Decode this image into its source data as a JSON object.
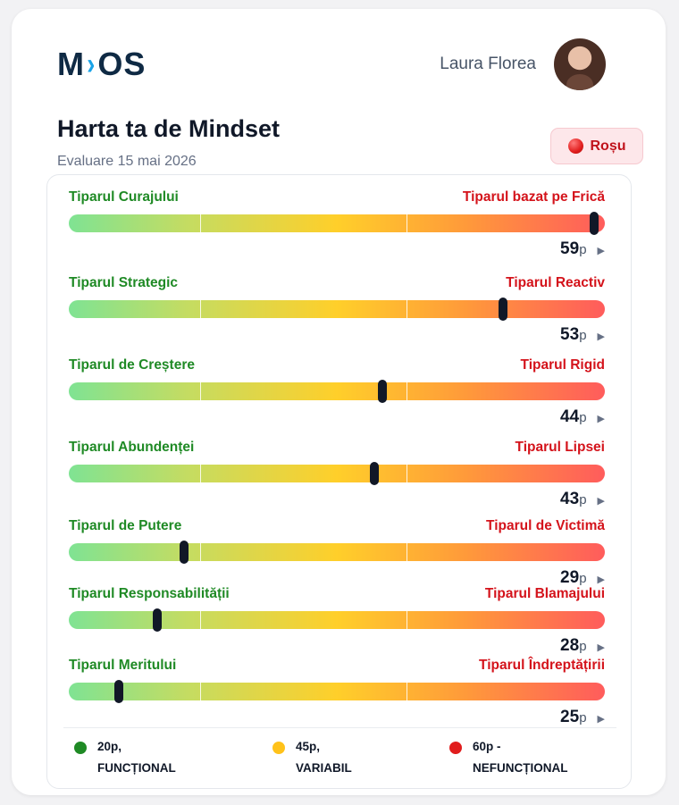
{
  "brand": {
    "name_left": "M",
    "name_mark": "›",
    "name_right": "OS",
    "accent": "#1aa3e8",
    "color": "#0f2a44"
  },
  "user": {
    "name": "Laura Florea",
    "avatar": "user-photo"
  },
  "header": {
    "title": "Harta ta de Mindset",
    "date": "Evaluare 15 mai 2026"
  },
  "status": {
    "label": "Roșu",
    "color": "#c0121b"
  },
  "unit": "p",
  "patterns": [
    {
      "left": "Tiparul Curajului",
      "right": "Tiparul bazat pe Frică",
      "score": "59",
      "fraction": 0.98
    },
    {
      "left": "Tiparul Strategic",
      "right": "Tiparul Reactiv",
      "score": "53",
      "fraction": 0.81
    },
    {
      "left": "Tiparul de Creștere",
      "right": "Tiparul Rigid",
      "score": "44",
      "fraction": 0.585
    },
    {
      "left": "Tiparul Abundenței",
      "right": "Tiparul Lipsei",
      "score": "43",
      "fraction": 0.57
    },
    {
      "left": "Tiparul de Putere",
      "right": "Tiparul de Victimă",
      "score": "29",
      "fraction": 0.215
    },
    {
      "left": "Tiparul Responsabilității",
      "right": "Tiparul Blamajului",
      "score": "28",
      "fraction": 0.165
    },
    {
      "left": "Tiparul Meritului",
      "right": "Tiparul Îndreptățirii",
      "score": "25",
      "fraction": 0.093
    }
  ],
  "legend": [
    {
      "value": "20p,",
      "label": "FUNCȚIONAL",
      "color": "#1f8a25"
    },
    {
      "value": "45p,",
      "label": "VARIABIL",
      "color": "#ffc21a"
    },
    {
      "value": "60p -",
      "label": "NEFUNCȚIONAL",
      "color": "#e11d1d"
    }
  ]
}
